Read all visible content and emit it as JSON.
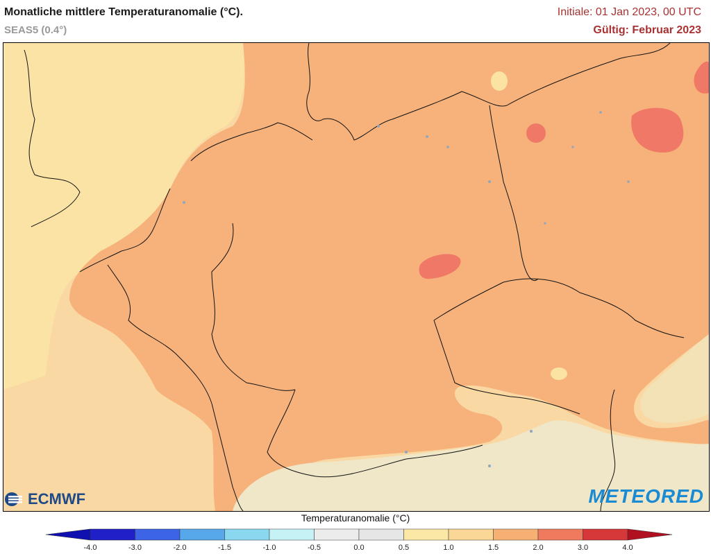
{
  "header": {
    "title": "Monatliche mittlere Temperaturanomalie (°C).",
    "subtitle": "SEAS5 (0.4°)",
    "initial": "Initiale: 01 Jan 2023, 00 UTC",
    "valid": "Gültig: Februar 2023"
  },
  "logos": {
    "left": "ECMWF",
    "right": "METEORED"
  },
  "legend": {
    "title": "Temperaturanomalie (°C)",
    "ticks": [
      "-4.0",
      "-3.0",
      "-2.0",
      "-1.5",
      "-1.0",
      "-0.5",
      "0.0",
      "0.5",
      "1.0",
      "1.5",
      "2.0",
      "3.0",
      "4.0"
    ],
    "colors": [
      "#2020c8",
      "#3c64e6",
      "#56a8ea",
      "#8ad8ef",
      "#c6f2f5",
      "#ececec",
      "#e6e6e6",
      "#fbe7a6",
      "#fad796",
      "#f6b073",
      "#f07a5e",
      "#d6383a"
    ],
    "end_low": "#1010b0",
    "end_high": "#b01020"
  },
  "map_colors": {
    "class_05_10": "#fbe3a4",
    "class_10_15": "#f9d5a0",
    "class_15_20": "#f6b27a",
    "class_20_30": "#f07866",
    "alps": "#efe9cf"
  }
}
